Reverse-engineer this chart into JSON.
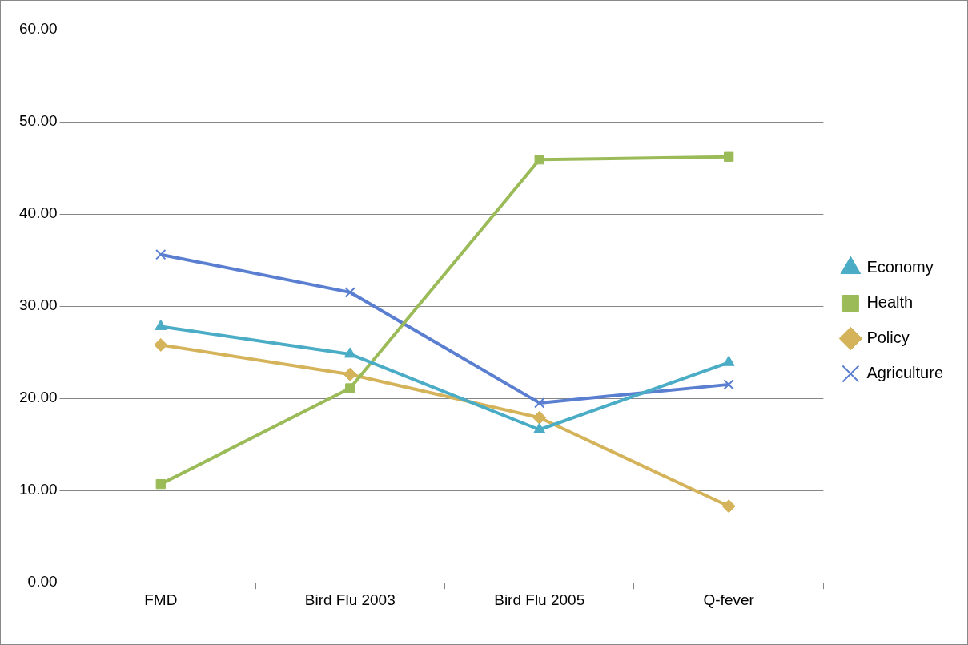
{
  "chart_data": {
    "type": "line",
    "categories": [
      "FMD",
      "Bird Flu 2003",
      "Bird Flu 2005",
      "Q-fever"
    ],
    "series": [
      {
        "name": "Economy",
        "color": "#4bacc6",
        "marker": "triangle",
        "values": [
          27.8,
          24.8,
          16.6,
          23.9
        ]
      },
      {
        "name": "Health",
        "color": "#9bbb59",
        "marker": "square",
        "values": [
          10.7,
          21.1,
          45.9,
          46.2
        ]
      },
      {
        "name": "Policy",
        "color": "#d4b35a",
        "marker": "diamond",
        "values": [
          25.8,
          22.6,
          17.9,
          8.3
        ]
      },
      {
        "name": "Agriculture",
        "color": "#5b7fd0",
        "marker": "cross",
        "values": [
          35.6,
          31.5,
          19.5,
          21.5
        ]
      }
    ],
    "ylim": [
      0,
      60
    ],
    "yticks": [
      {
        "value": 0,
        "label": "0.00"
      },
      {
        "value": 10,
        "label": "10.00"
      },
      {
        "value": 20,
        "label": "20.00"
      },
      {
        "value": 30,
        "label": "30.00"
      },
      {
        "value": 40,
        "label": "40.00"
      },
      {
        "value": 50,
        "label": "50.00"
      },
      {
        "value": 60,
        "label": "60.00"
      }
    ],
    "grid": "y",
    "legend": "right",
    "line_style": "solid"
  }
}
